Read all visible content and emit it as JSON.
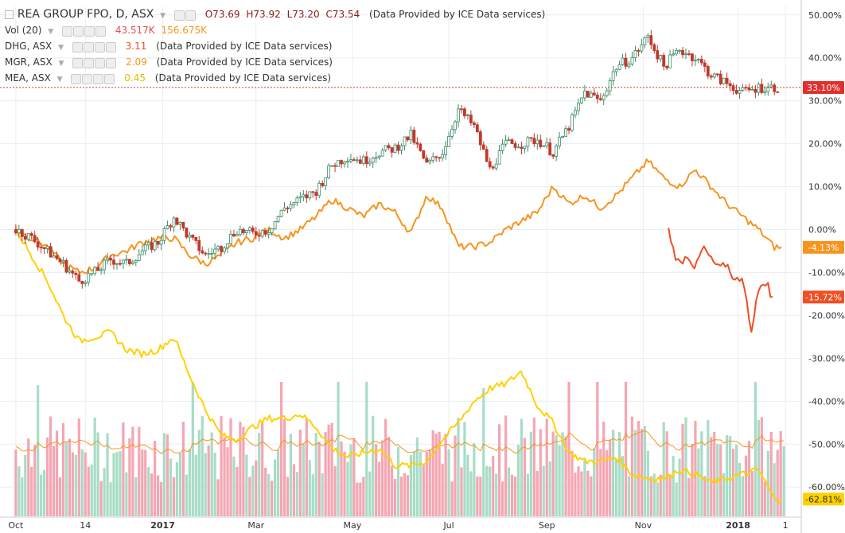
{
  "legend": {
    "main_title": "REA GROUP FPO, D, ASX",
    "ohlc": {
      "o": "O73.69",
      "h": "H73.92",
      "l": "L73.20",
      "c": "C73.54"
    },
    "source": "(Data Provided by ICE Data services)",
    "vol_label": "Vol (20)",
    "vol_val1": "43.517K",
    "vol_val2": "156.675K",
    "dhg_label": "DHG, ASX",
    "dhg_val": "3.11",
    "mgr_label": "MGR, ASX",
    "mgr_val": "2.09",
    "mea_label": "MEA, ASX",
    "mea_val": "0.45"
  },
  "colors": {
    "rea_up": "#3d8b67",
    "rea_down": "#c0392b",
    "dhg": "#f04e23",
    "mgr": "#f7941d",
    "mea": "#ffd100",
    "vol_up": "#a8dcc6",
    "vol_down": "#f4a6b2",
    "vol_ma": "#f7941d",
    "grid": "#e9eef2"
  },
  "chart_data": {
    "type": "line",
    "ylim": [
      -67,
      52
    ],
    "yticks": [
      "50.00%",
      "40.00%",
      "30.00%",
      "20.00%",
      "10.00%",
      "0.00%",
      "-10.00%",
      "-20.00%",
      "-30.00%",
      "-40.00%",
      "-50.00%",
      "-60.00%"
    ],
    "ytick_values": [
      50,
      40,
      30,
      20,
      10,
      0,
      -10,
      -20,
      -30,
      -40,
      -50,
      -60
    ],
    "xticks": [
      {
        "label": "Oct",
        "day": 0
      },
      {
        "label": "14",
        "day": 44
      },
      {
        "label": "2017",
        "day": 93
      },
      {
        "label": "Mar",
        "day": 152
      },
      {
        "label": "May",
        "day": 213
      },
      {
        "label": "Jul",
        "day": 274
      },
      {
        "label": "Sep",
        "day": 336
      },
      {
        "label": "Nov",
        "day": 397
      },
      {
        "label": "2018",
        "day": 457
      },
      {
        "label": "1",
        "day": 487
      }
    ],
    "x_range_days": [
      -10,
      497
    ],
    "badges": [
      {
        "label": "33.10%",
        "value": 33.1,
        "color": "#e0302d"
      },
      {
        "label": "-4.13%",
        "value": -4.13,
        "color": "#f7941d"
      },
      {
        "label": "-15.72%",
        "value": -15.72,
        "color": "#f04e23"
      },
      {
        "label": "-62.81%",
        "value": -62.81,
        "color": "#ffd100"
      }
    ],
    "last_price_line": 33.1,
    "series": [
      {
        "name": "REA GROUP FPO, D, ASX",
        "style": "candles",
        "x": [
          0,
          10,
          20,
          30,
          40,
          50,
          60,
          70,
          80,
          90,
          100,
          110,
          120,
          130,
          140,
          150,
          160,
          170,
          180,
          190,
          200,
          210,
          220,
          230,
          240,
          250,
          260,
          270,
          280,
          290,
          300,
          310,
          320,
          330,
          340,
          350,
          360,
          370,
          380,
          390,
          400,
          410,
          420,
          430,
          440,
          450,
          460,
          470,
          480
        ],
        "y": [
          0,
          -2,
          -5,
          -8,
          -12,
          -10,
          -7,
          -8,
          -5,
          -3,
          3,
          -2,
          -6,
          -4,
          0,
          -1,
          0,
          5,
          7,
          9,
          15,
          17,
          16,
          18,
          19,
          22,
          15,
          18,
          28,
          24,
          14,
          20,
          20,
          21,
          18,
          24,
          32,
          30,
          38,
          40,
          45,
          38,
          42,
          40,
          36,
          34,
          32,
          33.1,
          33.1
        ]
      },
      {
        "name": "MGR, ASX",
        "x": [
          0,
          10,
          20,
          30,
          40,
          50,
          60,
          70,
          80,
          90,
          100,
          110,
          120,
          130,
          140,
          150,
          160,
          170,
          180,
          190,
          200,
          210,
          220,
          230,
          240,
          250,
          260,
          270,
          280,
          290,
          300,
          310,
          320,
          330,
          340,
          350,
          360,
          370,
          380,
          390,
          400,
          410,
          420,
          430,
          440,
          450,
          460,
          470,
          480,
          485
        ],
        "y": [
          0,
          -2,
          -4,
          -8,
          -10,
          -9,
          -6,
          -5,
          -3,
          -2,
          -2,
          -6,
          -8,
          -6,
          -3,
          -2,
          0,
          -2,
          0,
          3,
          7,
          5,
          3,
          6,
          4,
          -1,
          8,
          5,
          -4,
          -4,
          -3,
          0,
          2,
          4,
          10,
          6,
          8,
          5,
          8,
          12,
          16,
          12,
          10,
          14,
          10,
          6,
          3,
          0,
          -4.13,
          -4.13
        ]
      },
      {
        "name": "DHG, ASX",
        "x": [
          413,
          417,
          420,
          425,
          430,
          435,
          440,
          445,
          450,
          455,
          460,
          462,
          465,
          467,
          470,
          473,
          476,
          479
        ],
        "y": [
          0,
          -6,
          -8,
          -6,
          -9,
          -4,
          -7,
          -9,
          -8,
          -12,
          -11,
          -15,
          -25,
          -20,
          -14,
          -13,
          -12,
          -15.72
        ]
      },
      {
        "name": "MEA, ASX",
        "x": [
          0,
          10,
          20,
          30,
          40,
          50,
          60,
          70,
          80,
          90,
          100,
          110,
          120,
          130,
          140,
          150,
          160,
          170,
          180,
          190,
          200,
          210,
          220,
          230,
          240,
          250,
          260,
          270,
          280,
          290,
          300,
          310,
          320,
          330,
          340,
          350,
          360,
          370,
          380,
          390,
          400,
          410,
          420,
          430,
          440,
          450,
          460,
          470,
          480,
          485
        ],
        "y": [
          0,
          -6,
          -12,
          -20,
          -26,
          -25,
          -24,
          -28,
          -29,
          -28,
          -25,
          -34,
          -42,
          -48,
          -49,
          -46,
          -44,
          -44,
          -43,
          -46,
          -51,
          -53,
          -52,
          -51,
          -55,
          -55,
          -54,
          -49,
          -45,
          -40,
          -37,
          -36,
          -33,
          -41,
          -45,
          -52,
          -54,
          -54,
          -53,
          -57,
          -58,
          -58,
          -56,
          -57,
          -59,
          -58,
          -57,
          -56,
          -62.81,
          -62.81
        ]
      }
    ],
    "volume": {
      "note": "volume histogram with 20-period moving average",
      "scale_max": 100
    }
  }
}
